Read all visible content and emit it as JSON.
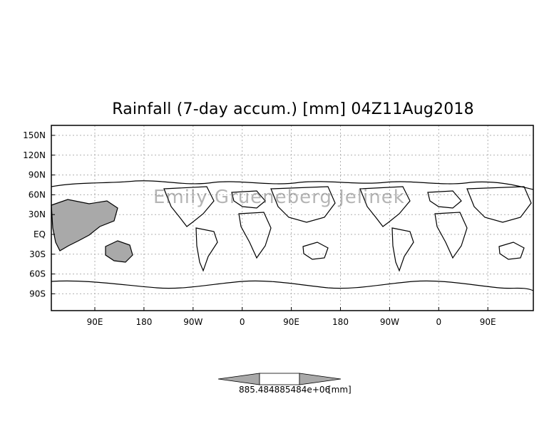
{
  "title": "Rainfall (7-day accum.) [mm] 04Z11Aug2018",
  "watermark": "Emily Grueneberg Jelinek",
  "lat_labels": [
    "150N",
    "120N",
    "90N",
    "60N",
    "30N",
    "EQ",
    "30S",
    "60S",
    "90S"
  ],
  "lon_labels": [
    "90E",
    "180",
    "90W",
    "0",
    "90E",
    "180",
    "90W",
    "0",
    "90E"
  ],
  "colorbar": {
    "label": "885.484885484e+06",
    "unit": "[mm]",
    "fill_color": "#a9a9a9"
  },
  "colors": {
    "land_fill": "#a9a9a9",
    "coastline": "#000000",
    "grid": "#b0b0b0"
  }
}
